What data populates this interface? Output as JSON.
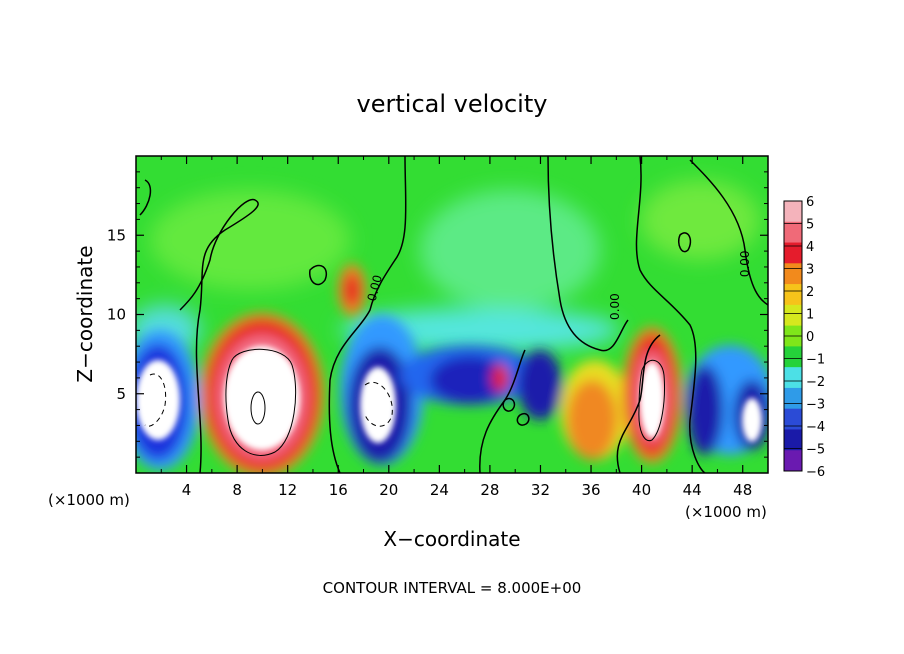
{
  "chart_data": {
    "type": "heatmap",
    "title": "vertical velocity",
    "xlabel": "X−coordinate",
    "ylabel": "Z−coordinate",
    "x_unit_left": "(×1000 m)",
    "x_unit_right": "(×1000 m)",
    "xlim": [
      0,
      50
    ],
    "ylim": [
      0,
      20
    ],
    "x_ticks": [
      4,
      8,
      12,
      16,
      20,
      24,
      28,
      32,
      36,
      40,
      44,
      48
    ],
    "y_ticks": [
      5,
      10,
      15
    ],
    "footer": "CONTOUR INTERVAL = 8.000E+00",
    "contour_labels": [
      {
        "text": "0.00",
        "x": 19.2,
        "y": 11.6,
        "rotate": -75
      },
      {
        "text": "0.00",
        "x": 38.2,
        "y": 10.5,
        "rotate": -90
      },
      {
        "text": "0.00",
        "x": 48.5,
        "y": 13.2,
        "rotate": -90
      }
    ],
    "colorbar": {
      "labels": [
        "6",
        "5",
        "4",
        "3",
        "2",
        "1",
        "0",
        "−1",
        "−2",
        "−3",
        "−4",
        "−5",
        "−6"
      ],
      "colors": [
        "#f4b3bb",
        "#f06a78",
        "#e51c2c",
        "#f28a1c",
        "#f6c31a",
        "#d6e81e",
        "#7fe61a",
        "#25d23a",
        "#4ce0e6",
        "#2f9be8",
        "#2b4bd6",
        "#1a1aa8",
        "#6a1ab0"
      ]
    },
    "field_colors": {
      "background": "#33dd33",
      "light_green": "#88ee44",
      "cyan": "#66f0ee",
      "light_blue": "#3399ff",
      "blue": "#1a33dd",
      "dark_blue": "#1010aa",
      "red": "#e62222",
      "orange": "#f08822",
      "yellow": "#f4dd22",
      "pink": "#f47088",
      "white": "#ffffff"
    }
  }
}
